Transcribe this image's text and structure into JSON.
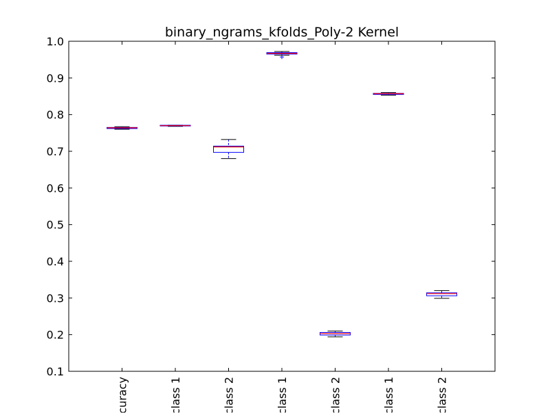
{
  "chart_data": {
    "type": "box",
    "title": "binary_ngrams_kfolds_Poly-2 Kernel",
    "xlabel": "",
    "ylabel": "",
    "ylim": [
      0.1,
      1.0
    ],
    "yticks": [
      "0.1",
      "0.2",
      "0.3",
      "0.4",
      "0.5",
      "0.6",
      "0.7",
      "0.8",
      "0.9",
      "1.0"
    ],
    "grid": false,
    "legend": "none",
    "categories": [
      "curacy",
      "class 1",
      "class 2",
      "class 1",
      "class 2",
      "class 1",
      "class 2"
    ],
    "boxes": [
      {
        "whisker_low": 0.76,
        "q1": 0.762,
        "median": 0.764,
        "q3": 0.765,
        "whisker_high": 0.767,
        "fliers": []
      },
      {
        "whisker_low": 0.768,
        "q1": 0.769,
        "median": 0.77,
        "q3": 0.771,
        "whisker_high": 0.771,
        "fliers": []
      },
      {
        "whisker_low": 0.68,
        "q1": 0.697,
        "median": 0.712,
        "q3": 0.714,
        "whisker_high": 0.732,
        "fliers": []
      },
      {
        "whisker_low": 0.962,
        "q1": 0.965,
        "median": 0.967,
        "q3": 0.969,
        "whisker_high": 0.972,
        "fliers": [
          0.957
        ]
      },
      {
        "whisker_low": 0.194,
        "q1": 0.199,
        "median": 0.203,
        "q3": 0.206,
        "whisker_high": 0.21,
        "fliers": []
      },
      {
        "whisker_low": 0.853,
        "q1": 0.855,
        "median": 0.857,
        "q3": 0.858,
        "whisker_high": 0.86,
        "fliers": []
      },
      {
        "whisker_low": 0.299,
        "q1": 0.306,
        "median": 0.312,
        "q3": 0.314,
        "whisker_high": 0.32,
        "fliers": []
      }
    ],
    "colors": {
      "box": "#0000ff",
      "whisker": "#000000",
      "median": "#ff0000",
      "flier": "#0000ff",
      "axes": "#000000",
      "background": "#ffffff"
    }
  }
}
